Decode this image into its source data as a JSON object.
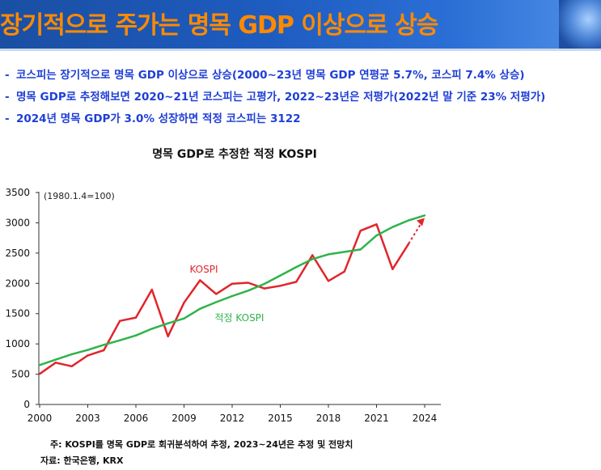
{
  "header": {
    "title": "장기적으로 주가는 명목 GDP 이상으로 상승"
  },
  "bullets": [
    "코스피는 장기적으로 명목 GDP 이상으로 상승(2000~23년 명목 GDP 연평균 5.7%, 코스피 7.4% 상승)",
    "명목 GDP로 추정해보면 2020~21년 코스피는 고평가, 2022~23년은 저평가(2022년 말 기준 23% 저평가)",
    "2024년 명목 GDP가 3.0% 성장하면 적정 코스피는 3122"
  ],
  "chart_data": {
    "type": "line",
    "title": "명목 GDP로 추정한 적정 KOSPI",
    "unit_note": "(1980.1.4=100)",
    "xlabel": "",
    "ylabel": "",
    "x_ticks": [
      "2000",
      "2003",
      "2006",
      "2009",
      "2012",
      "2015",
      "2018",
      "2021",
      "2024"
    ],
    "y_ticks": [
      "0",
      "500",
      "1000",
      "1500",
      "2000",
      "2500",
      "3000",
      "3500"
    ],
    "xlim": [
      2000,
      2024
    ],
    "ylim": [
      0,
      3500
    ],
    "grid": false,
    "series": [
      {
        "name": "KOSPI",
        "color": "#e0262b",
        "x": [
          2000,
          2001,
          2002,
          2003,
          2004,
          2005,
          2006,
          2007,
          2008,
          2009,
          2010,
          2011,
          2012,
          2013,
          2014,
          2015,
          2016,
          2017,
          2018,
          2019,
          2020,
          2021,
          2022,
          2023
        ],
        "y": [
          505,
          690,
          630,
          810,
          895,
          1380,
          1435,
          1895,
          1125,
          1680,
          2050,
          1825,
          1995,
          2010,
          1915,
          1960,
          2025,
          2465,
          2040,
          2195,
          2870,
          2975,
          2235,
          2655
        ]
      },
      {
        "name": "적정 KOSPI",
        "color": "#2fb34a",
        "x": [
          2000,
          2001,
          2002,
          2003,
          2004,
          2005,
          2006,
          2007,
          2008,
          2009,
          2010,
          2011,
          2012,
          2013,
          2014,
          2015,
          2016,
          2017,
          2018,
          2019,
          2020,
          2021,
          2022,
          2023,
          2024
        ],
        "y": [
          650,
          740,
          830,
          900,
          985,
          1060,
          1140,
          1250,
          1340,
          1420,
          1580,
          1690,
          1790,
          1880,
          1990,
          2130,
          2270,
          2400,
          2480,
          2520,
          2560,
          2790,
          2930,
          3040,
          3122
        ]
      }
    ],
    "projection": {
      "from": [
        2023,
        2655
      ],
      "to": [
        2024,
        3080
      ],
      "color": "#e0262b"
    }
  },
  "notes": {
    "footnote": "주:  KOSPI를 명목 GDP로 회귀분석하여 추정, 2023~24년은 추정 및 전망치",
    "source": "자료: 한국은행, KRX"
  }
}
